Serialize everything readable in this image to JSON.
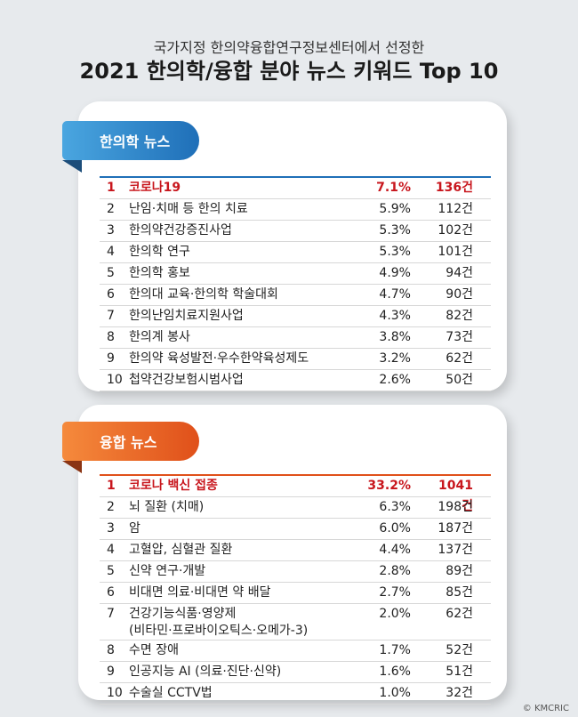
{
  "header": {
    "subtitle": "국가지정 한의약융합연구정보센터에서 선정한",
    "title": "2021 한의학/융합 분야 뉴스 키워드 Top 10"
  },
  "sections": [
    {
      "label": "한의학 뉴스",
      "color": "#1f6fb8",
      "rows": [
        {
          "rank": "1",
          "keyword": "코로나19",
          "percent": "7.1%",
          "count": "136건"
        },
        {
          "rank": "2",
          "keyword": "난임·치매 등 한의 치료",
          "percent": "5.9%",
          "count": "112건"
        },
        {
          "rank": "3",
          "keyword": "한의약건강증진사업",
          "percent": "5.3%",
          "count": "102건"
        },
        {
          "rank": "4",
          "keyword": "한의학 연구",
          "percent": "5.3%",
          "count": "101건"
        },
        {
          "rank": "5",
          "keyword": "한의학 홍보",
          "percent": "4.9%",
          "count": "94건"
        },
        {
          "rank": "6",
          "keyword": "한의대 교육·한의학 학술대회",
          "percent": "4.7%",
          "count": "90건"
        },
        {
          "rank": "7",
          "keyword": "한의난임치료지원사업",
          "percent": "4.3%",
          "count": "82건"
        },
        {
          "rank": "8",
          "keyword": "한의계 봉사",
          "percent": "3.8%",
          "count": "73건"
        },
        {
          "rank": "9",
          "keyword": "한의약 육성발전·우수한약육성제도",
          "percent": "3.2%",
          "count": "62건"
        },
        {
          "rank": "10",
          "keyword": "첩약건강보험시범사업",
          "percent": "2.6%",
          "count": "50건"
        }
      ]
    },
    {
      "label": "융합 뉴스",
      "color": "#e0501a",
      "rows": [
        {
          "rank": "1",
          "keyword": "코로나 백신 접종",
          "percent": "33.2%",
          "count": "1041건"
        },
        {
          "rank": "2",
          "keyword": "뇌 질환 (치매)",
          "percent": "6.3%",
          "count": "198건"
        },
        {
          "rank": "3",
          "keyword": "암",
          "percent": "6.0%",
          "count": "187건"
        },
        {
          "rank": "4",
          "keyword": "고혈압, 심혈관 질환",
          "percent": "4.4%",
          "count": "137건"
        },
        {
          "rank": "5",
          "keyword": "신약 연구·개발",
          "percent": "2.8%",
          "count": "89건"
        },
        {
          "rank": "6",
          "keyword": "비대면 의료·비대면 약 배달",
          "percent": "2.7%",
          "count": "85건"
        },
        {
          "rank": "7",
          "keyword": "건강기능식품·영양제",
          "keyword2": "(비타민·프로바이오틱스·오메가-3)",
          "percent": "2.0%",
          "count": "62건"
        },
        {
          "rank": "8",
          "keyword": "수면 장애",
          "percent": "1.7%",
          "count": "52건"
        },
        {
          "rank": "9",
          "keyword": "인공지능 AI (의료·진단·신약)",
          "percent": "1.6%",
          "count": "51건"
        },
        {
          "rank": "10",
          "keyword": "수술실 CCTV법",
          "percent": "1.0%",
          "count": "32건"
        }
      ]
    }
  ],
  "copyright": "© KMCRIC"
}
